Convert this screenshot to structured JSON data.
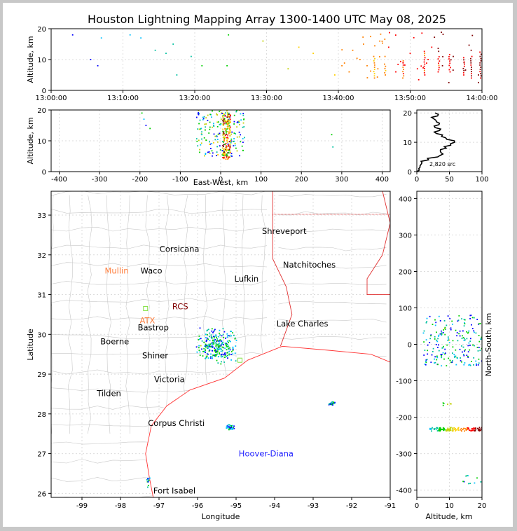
{
  "title": "Houston Lightning Mapping Array 1300-1400 UTC May 08, 2025",
  "colors": {
    "rainbow": [
      "#0000ff",
      "#00c0ff",
      "#00c0a0",
      "#00d000",
      "#c0d000",
      "#ffd000",
      "#ff8000",
      "#ff0000",
      "#800000"
    ],
    "coast": "#ff3333",
    "county": "#c8c8c8",
    "grid": "#dcdcdc",
    "town": "#000000",
    "station": "#ff8040"
  },
  "chart_data": [
    {
      "id": "time_altitude",
      "type": "scatter",
      "ylabel": "Altitude, km",
      "xlim": [
        "13:00:00",
        "14:00:00"
      ],
      "ylim": [
        0,
        20
      ],
      "xticks": [
        "13:00:00",
        "13:10:00",
        "13:20:00",
        "13:30:00",
        "13:40:00",
        "13:50:00",
        "14:00:00"
      ],
      "yticks": [
        0,
        10,
        20
      ],
      "points": [
        {
          "t": 3.0,
          "alt": 18
        },
        {
          "t": 5.5,
          "alt": 10
        },
        {
          "t": 6.5,
          "alt": 8
        },
        {
          "t": 7.0,
          "alt": 17
        },
        {
          "t": 11,
          "alt": 18
        },
        {
          "t": 12.5,
          "alt": 17
        },
        {
          "t": 14.5,
          "alt": 13
        },
        {
          "t": 16.0,
          "alt": 12
        },
        {
          "t": 17.0,
          "alt": 15
        },
        {
          "t": 17.5,
          "alt": 5
        },
        {
          "t": 19.5,
          "alt": 11
        },
        {
          "t": 21.0,
          "alt": 8
        },
        {
          "t": 24.5,
          "alt": 8
        },
        {
          "t": 24.7,
          "alt": 18
        },
        {
          "t": 29.5,
          "alt": 16
        },
        {
          "t": 33.0,
          "alt": 7
        },
        {
          "t": 34.5,
          "alt": 14
        },
        {
          "t": 36.5,
          "alt": 12
        },
        {
          "t": 39.5,
          "alt": 5
        },
        {
          "t": 40.5,
          "alt": 8
        },
        {
          "t": 41.5,
          "alt": 6
        },
        {
          "t": 42.0,
          "alt": 13
        },
        {
          "t": 43.0,
          "alt": 10
        },
        {
          "t": 43.5,
          "alt": 15
        },
        {
          "t": 44.0,
          "alt": 8
        },
        {
          "t": 45.5,
          "alt": 7
        },
        {
          "t": 46.5,
          "alt": 11
        },
        {
          "t": 47.0,
          "alt": 14
        },
        {
          "t": 48.0,
          "alt": 6
        },
        {
          "t": 49.0,
          "alt": 9
        },
        {
          "t": 50.0,
          "alt": 12
        },
        {
          "t": 51.0,
          "alt": 7
        },
        {
          "t": 52.5,
          "alt": 10
        },
        {
          "t": 53.0,
          "alt": 14
        },
        {
          "t": 54.5,
          "alt": 8
        },
        {
          "t": 56.0,
          "alt": 11
        },
        {
          "t": 57.5,
          "alt": 9
        },
        {
          "t": 58.5,
          "alt": 13
        },
        {
          "t": 59.5,
          "alt": 5
        }
      ],
      "columns": [
        {
          "t": 45.0,
          "lo": 4,
          "hi": 11
        },
        {
          "t": 46.5,
          "lo": 5,
          "hi": 9
        },
        {
          "t": 49.0,
          "lo": 4,
          "hi": 10
        },
        {
          "t": 52.0,
          "lo": 5,
          "hi": 12
        },
        {
          "t": 54.0,
          "lo": 6,
          "hi": 11
        },
        {
          "t": 55.5,
          "lo": 6,
          "hi": 12
        },
        {
          "t": 57.5,
          "lo": 5,
          "hi": 11
        },
        {
          "t": 58.5,
          "lo": 4,
          "hi": 11
        },
        {
          "t": 59.8,
          "lo": 4,
          "hi": 13
        }
      ]
    },
    {
      "id": "ew_altitude",
      "type": "scatter",
      "xlabel": "East-West, km",
      "ylabel": "Altitude, km",
      "xlim": [
        -420,
        420
      ],
      "ylim": [
        0,
        20
      ],
      "xticks": [
        -400,
        -300,
        -200,
        -100,
        0,
        100,
        200,
        300,
        400
      ],
      "yticks": [
        0,
        10,
        20
      ],
      "core": {
        "x_min": 5,
        "x_max": 25,
        "alt_min": 4,
        "alt_max": 19
      },
      "scatter": {
        "x_min": -60,
        "x_max": 60,
        "alt_min": 5,
        "alt_max": 20
      },
      "outliers": [
        {
          "x": -195,
          "alt": 19
        },
        {
          "x": -190,
          "alt": 17
        },
        {
          "x": -185,
          "alt": 15
        },
        {
          "x": -175,
          "alt": 14
        },
        {
          "x": 275,
          "alt": 12
        },
        {
          "x": 278,
          "alt": 8
        }
      ]
    },
    {
      "id": "altitude_histogram",
      "type": "line",
      "xlim": [
        0,
        100
      ],
      "ylim": [
        0,
        21
      ],
      "xticks": [
        0,
        50,
        100
      ],
      "yticks": [
        0,
        10,
        20
      ],
      "annotation": "2,820 src",
      "profile": [
        {
          "count": 0,
          "alt": 0
        },
        {
          "count": 3,
          "alt": 1
        },
        {
          "count": 5,
          "alt": 2
        },
        {
          "count": 8,
          "alt": 3
        },
        {
          "count": 18,
          "alt": 4
        },
        {
          "count": 32,
          "alt": 5
        },
        {
          "count": 40,
          "alt": 6
        },
        {
          "count": 36,
          "alt": 7
        },
        {
          "count": 45,
          "alt": 8
        },
        {
          "count": 52,
          "alt": 9
        },
        {
          "count": 58,
          "alt": 10
        },
        {
          "count": 46,
          "alt": 11
        },
        {
          "count": 38,
          "alt": 12
        },
        {
          "count": 30,
          "alt": 13
        },
        {
          "count": 35,
          "alt": 14
        },
        {
          "count": 28,
          "alt": 15
        },
        {
          "count": 34,
          "alt": 16
        },
        {
          "count": 30,
          "alt": 17
        },
        {
          "count": 26,
          "alt": 18
        },
        {
          "count": 32,
          "alt": 19
        },
        {
          "count": 28,
          "alt": 20
        }
      ]
    },
    {
      "id": "plan_view",
      "type": "scatter",
      "xlabel": "Longitude",
      "ylabel": "Latitude",
      "xlim": [
        -99.8,
        -91.0
      ],
      "ylim": [
        25.9,
        33.6
      ],
      "xticks": [
        -99,
        -98,
        -97,
        -96,
        -95,
        -94,
        -93,
        -92,
        -91
      ],
      "yticks": [
        26,
        27,
        28,
        29,
        30,
        31,
        32,
        33
      ],
      "places": [
        {
          "name": "Shreveport",
          "lon": -93.75,
          "lat": 32.6,
          "color": "#000000"
        },
        {
          "name": "Corsicana",
          "lon": -96.47,
          "lat": 32.15,
          "color": "#000000"
        },
        {
          "name": "Natchitoches",
          "lon": -93.1,
          "lat": 31.75,
          "color": "#000000"
        },
        {
          "name": "Mullin",
          "lon": -98.1,
          "lat": 31.6,
          "color": "#ff8040"
        },
        {
          "name": "Waco",
          "lon": -97.2,
          "lat": 31.6,
          "color": "#000000"
        },
        {
          "name": "Lufkin",
          "lon": -94.73,
          "lat": 31.4,
          "color": "#000000"
        },
        {
          "name": "RCS",
          "lon": -96.45,
          "lat": 30.7,
          "color": "#800000"
        },
        {
          "name": "ATX",
          "lon": -97.3,
          "lat": 30.35,
          "color": "#ff8040"
        },
        {
          "name": "Lake Charles",
          "lon": -93.28,
          "lat": 30.27,
          "color": "#000000"
        },
        {
          "name": "Bastrop",
          "lon": -97.15,
          "lat": 30.17,
          "color": "#000000"
        },
        {
          "name": "Boerne",
          "lon": -98.15,
          "lat": 29.82,
          "color": "#000000"
        },
        {
          "name": "Shiner",
          "lon": -97.1,
          "lat": 29.47,
          "color": "#000000"
        },
        {
          "name": "Victoria",
          "lon": -96.73,
          "lat": 28.87,
          "color": "#000000"
        },
        {
          "name": "Tilden",
          "lon": -98.3,
          "lat": 28.52,
          "color": "#000000"
        },
        {
          "name": "Corpus Christi",
          "lon": -96.55,
          "lat": 27.77,
          "color": "#000000"
        },
        {
          "name": "Hoover-Diana",
          "lon": -94.22,
          "lat": 27.0,
          "color": "#1e1eff"
        },
        {
          "name": "Fort Isabel",
          "lon": -96.6,
          "lat": 26.07,
          "color": "#000000"
        }
      ],
      "stations": [
        {
          "lon": -97.35,
          "lat": 30.65
        },
        {
          "lon": -94.9,
          "lat": 29.35
        }
      ],
      "clusters": [
        {
          "lon": -95.5,
          "lat": 29.7,
          "spread_lon": 0.35,
          "spread_lat": 0.3,
          "n": 260
        },
        {
          "lon": -95.15,
          "lat": 27.65,
          "spread_lon": 0.08,
          "spread_lat": 0.05,
          "n": 40
        },
        {
          "lon": -92.52,
          "lat": 28.26,
          "spread_lon": 0.06,
          "spread_lat": 0.03,
          "n": 25
        },
        {
          "lon": -97.28,
          "lat": 26.3,
          "spread_lon": 0.03,
          "spread_lat": 0.1,
          "n": 12
        }
      ]
    },
    {
      "id": "altitude_ns",
      "type": "scatter",
      "xlabel": "Altitude, km",
      "ylabel": "North-South, km",
      "xlim": [
        0,
        20
      ],
      "ylim": [
        -420,
        420
      ],
      "xticks": [
        0,
        10,
        20
      ],
      "yticks": [
        -400,
        -300,
        -200,
        -100,
        0,
        100,
        200,
        300,
        400
      ],
      "bands": [
        {
          "y_min": -60,
          "y_max": 80,
          "alt_min": 2,
          "alt_max": 20,
          "n": 200
        },
        {
          "y_min": -238,
          "y_max": -228,
          "alt_min": 4,
          "alt_max": 20,
          "n": 120
        },
        {
          "y_min": -170,
          "y_max": -160,
          "alt_min": 8,
          "alt_max": 11,
          "n": 6
        },
        {
          "y_min": -385,
          "y_max": -360,
          "alt_min": 14,
          "alt_max": 20,
          "n": 10
        }
      ]
    }
  ]
}
